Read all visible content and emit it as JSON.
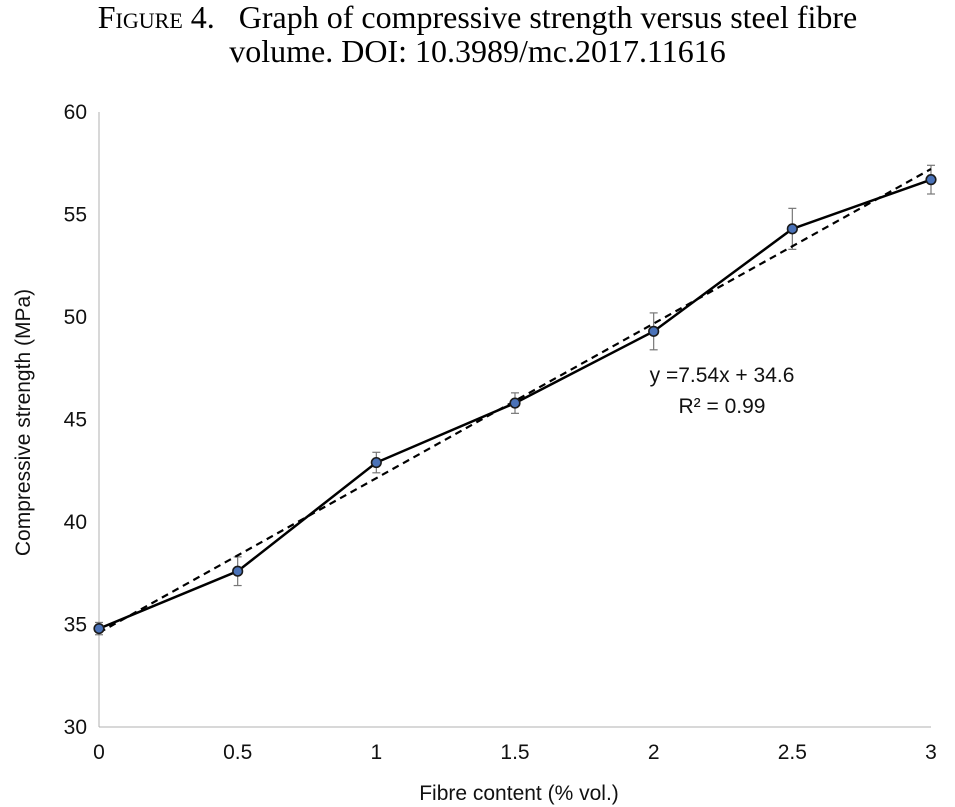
{
  "caption": {
    "figure_label": "Figure 4.",
    "line1": "Graph of compressive strength versus steel fibre",
    "line2": "volume. DOI: 10.3989/mc.2017.11616"
  },
  "chart_data": {
    "type": "line",
    "xlabel": "Fibre content (% vol.)",
    "ylabel": "Compressive strength (MPa)",
    "xlim": [
      0,
      3
    ],
    "ylim": [
      30,
      60
    ],
    "x_ticks": [
      "0",
      "0.5",
      "1",
      "1.5",
      "2",
      "2.5",
      "3"
    ],
    "y_ticks": [
      "30",
      "35",
      "40",
      "45",
      "50",
      "55",
      "60"
    ],
    "grid": false,
    "legend": "none",
    "series": [
      {
        "x": [
          0,
          0.5,
          1,
          1.5,
          2,
          2.5,
          3
        ],
        "values": [
          34.8,
          37.6,
          42.9,
          45.8,
          49.3,
          54.3,
          56.7
        ],
        "error": [
          0.3,
          0.7,
          0.5,
          0.5,
          0.9,
          1.0,
          0.7
        ],
        "color": "#000000",
        "marker_color": "#4a72b8"
      }
    ],
    "trendline": {
      "style": "dashed",
      "slope": 7.54,
      "intercept": 34.6,
      "equation_label": "y =7.54x + 34.6",
      "r2_label": "R² = 0.99"
    }
  }
}
